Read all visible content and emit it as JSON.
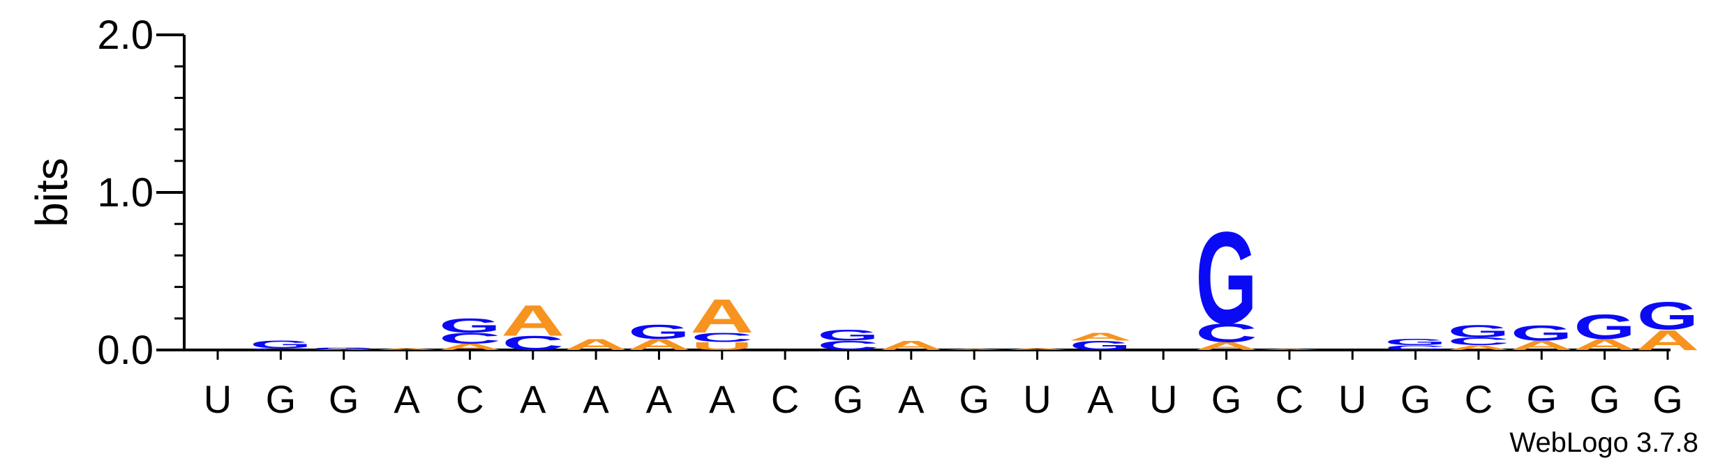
{
  "chart_data": {
    "type": "sequence-logo",
    "ylabel": "bits",
    "ylim": [
      0,
      2.0
    ],
    "yticks": [
      {
        "value": 0.0,
        "label": "0.0"
      },
      {
        "value": 1.0,
        "label": "1.0"
      },
      {
        "value": 2.0,
        "label": "2.0"
      }
    ],
    "x_tick_labels": [
      "U",
      "G",
      "G",
      "A",
      "C",
      "A",
      "A",
      "A",
      "A",
      "C",
      "G",
      "A",
      "G",
      "U",
      "A",
      "U",
      "G",
      "C",
      "U",
      "G",
      "C",
      "G",
      "G",
      "G"
    ],
    "colors": {
      "G": "#0a0af5",
      "C": "#0a0af5",
      "A": "#f7931e",
      "U": "#f7931e"
    },
    "positions": [
      {
        "letters": []
      },
      {
        "letters": [
          {
            "char": "C",
            "height": 0.01
          },
          {
            "char": "G",
            "height": 0.05
          }
        ]
      },
      {
        "letters": [
          {
            "char": "A",
            "height": 0.005
          },
          {
            "char": "G",
            "height": 0.01
          }
        ]
      },
      {
        "letters": [
          {
            "char": "A",
            "height": 0.01
          }
        ]
      },
      {
        "letters": [
          {
            "char": "A",
            "height": 0.04
          },
          {
            "char": "C",
            "height": 0.07
          },
          {
            "char": "G",
            "height": 0.09
          }
        ]
      },
      {
        "letters": [
          {
            "char": "C",
            "height": 0.09
          },
          {
            "char": "A",
            "height": 0.2
          }
        ]
      },
      {
        "letters": [
          {
            "char": "A",
            "height": 0.07
          }
        ]
      },
      {
        "letters": [
          {
            "char": "A",
            "height": 0.07
          },
          {
            "char": "G",
            "height": 0.09
          }
        ]
      },
      {
        "letters": [
          {
            "char": "U",
            "height": 0.05
          },
          {
            "char": "C",
            "height": 0.06
          },
          {
            "char": "A",
            "height": 0.22
          }
        ]
      },
      {
        "letters": []
      },
      {
        "letters": [
          {
            "char": "C",
            "height": 0.06
          },
          {
            "char": "G",
            "height": 0.07
          }
        ]
      },
      {
        "letters": [
          {
            "char": "A",
            "height": 0.06
          }
        ]
      },
      {
        "letters": [
          {
            "char": "A",
            "height": 0.005
          }
        ]
      },
      {
        "letters": [
          {
            "char": "A",
            "height": 0.01
          }
        ]
      },
      {
        "letters": [
          {
            "char": "G",
            "height": 0.06
          },
          {
            "char": "A",
            "height": 0.05
          }
        ]
      },
      {
        "letters": []
      },
      {
        "letters": [
          {
            "char": "A",
            "height": 0.05
          },
          {
            "char": "C",
            "height": 0.12
          },
          {
            "char": "G",
            "height": 0.6
          }
        ]
      },
      {
        "letters": [
          {
            "char": "A",
            "height": 0.005
          }
        ]
      },
      {
        "letters": []
      },
      {
        "letters": [
          {
            "char": "C",
            "height": 0.03
          },
          {
            "char": "G",
            "height": 0.04
          }
        ]
      },
      {
        "letters": [
          {
            "char": "A",
            "height": 0.03
          },
          {
            "char": "C",
            "height": 0.05
          },
          {
            "char": "G",
            "height": 0.08
          }
        ]
      },
      {
        "letters": [
          {
            "char": "A",
            "height": 0.06
          },
          {
            "char": "G",
            "height": 0.1
          }
        ]
      },
      {
        "letters": [
          {
            "char": "A",
            "height": 0.07
          },
          {
            "char": "G",
            "height": 0.16
          }
        ]
      },
      {
        "letters": [
          {
            "char": "A",
            "height": 0.13
          },
          {
            "char": "G",
            "height": 0.18
          }
        ]
      }
    ]
  },
  "footer": {
    "credit": "WebLogo 3.7.8"
  }
}
